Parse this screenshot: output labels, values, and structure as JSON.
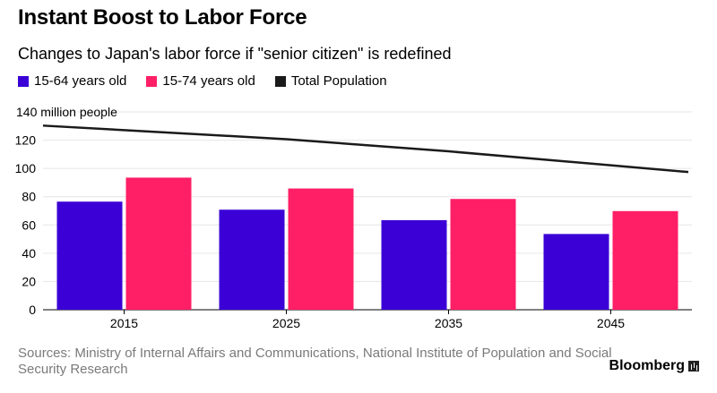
{
  "title": "Instant Boost to Labor Force",
  "subtitle": "Changes to Japan's labor force if \"senior citizen\" is redefined",
  "legend": [
    {
      "label": "15-64 years old",
      "color": "#3a00d6"
    },
    {
      "label": "15-74 years old",
      "color": "#ff1f66"
    },
    {
      "label": "Total Population",
      "color": "#1a1a1a"
    }
  ],
  "source": "Sources: Ministry of Internal Affairs and Communications, National Institute of Population and Social Security Research",
  "brand": "Bloomberg",
  "chart_data": {
    "type": "bar",
    "categories": [
      "2015",
      "2025",
      "2035",
      "2045"
    ],
    "series": [
      {
        "name": "15-64 years old",
        "type": "bar",
        "color": "#3a00d6",
        "values": [
          76.5,
          70.8,
          63.4,
          53.6
        ]
      },
      {
        "name": "15-74 years old",
        "type": "bar",
        "color": "#ff1f66",
        "values": [
          93.5,
          85.8,
          78.4,
          69.8
        ]
      },
      {
        "name": "Total Population",
        "type": "line",
        "color": "#1a1a1a",
        "values": [
          127.1,
          120.7,
          112.1,
          102.2
        ]
      }
    ],
    "ylabel": "140 million people",
    "ylim": [
      0,
      140
    ],
    "yticks": [
      0,
      20,
      40,
      60,
      80,
      100,
      120,
      140
    ],
    "ytick_labels": [
      "0",
      "20",
      "40",
      "60",
      "80",
      "100",
      "120",
      "140 million people"
    ],
    "grid": true,
    "legend_position": "top-left"
  }
}
